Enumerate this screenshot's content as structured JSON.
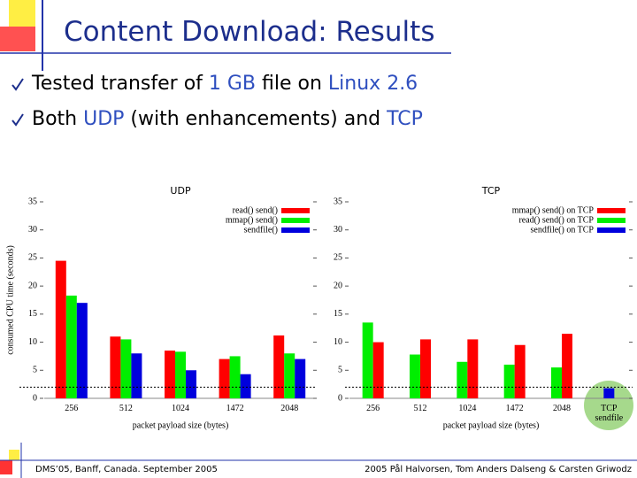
{
  "slide": {
    "title": "Content Download: Results",
    "bullets": [
      [
        "Tested transfer of ",
        "1 GB",
        " file on ",
        "Linux 2.6"
      ],
      [
        "Both ",
        "UDP",
        " (with enhancements) and ",
        "TCP"
      ]
    ],
    "footer_left": "DMS’05, Banff, Canada. September 2005",
    "footer_right": "2005  Pål Halvorsen, Tom Anders Dalseng & Carsten Griwodz"
  },
  "chart_data": [
    {
      "type": "bar",
      "title": "UDP",
      "xlabel": "packet payload size (bytes)",
      "ylabel": "consumed CPU time (seconds)",
      "categories": [
        "256",
        "512",
        "1024",
        "1472",
        "2048"
      ],
      "series": [
        {
          "name": "read() send()",
          "color": "#ff0000",
          "values": [
            24.5,
            11,
            8.5,
            7,
            11.2
          ]
        },
        {
          "name": "mmap() send()",
          "color": "#00ee00",
          "values": [
            18.3,
            10.5,
            8.3,
            7.5,
            8
          ]
        },
        {
          "name": "sendfile()",
          "color": "#0000dd",
          "values": [
            17,
            8,
            5,
            4.3,
            7
          ]
        }
      ],
      "ylim": [
        0,
        35
      ],
      "yticks": [
        0,
        5,
        10,
        15,
        20,
        25,
        30,
        35
      ],
      "reference_line": 2
    },
    {
      "type": "bar",
      "title": "TCP",
      "xlabel": "packet payload size (bytes)",
      "categories": [
        "256",
        "512",
        "1024",
        "1472",
        "2048",
        "TCP sendfile"
      ],
      "series": [
        {
          "name": "mmap() send() on TCP",
          "color": "#ff0000",
          "values": [
            10,
            10.5,
            10.5,
            9.5,
            11.5,
            null
          ]
        },
        {
          "name": "read() send() on TCP",
          "color": "#00ee00",
          "values": [
            13.5,
            7.8,
            6.5,
            6,
            5.5,
            null
          ]
        },
        {
          "name": "sendfile() on TCP",
          "color": "#0000dd",
          "values": [
            null,
            null,
            null,
            null,
            null,
            1.8
          ]
        }
      ],
      "draw_order": [
        1,
        0,
        2
      ],
      "ylim": [
        0,
        35
      ],
      "yticks": [
        0,
        5,
        10,
        15,
        20,
        25,
        30,
        35
      ],
      "reference_line": 2
    }
  ]
}
